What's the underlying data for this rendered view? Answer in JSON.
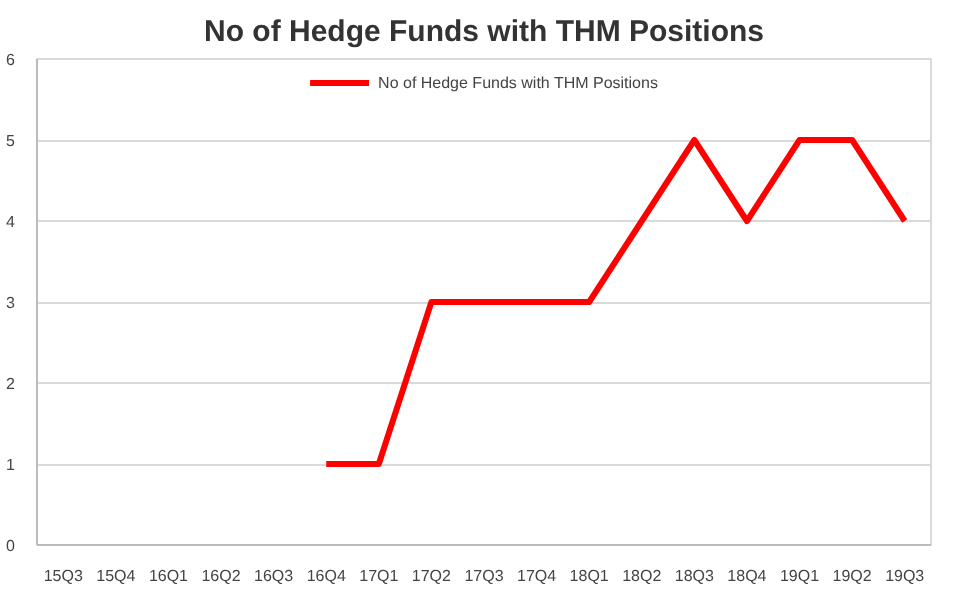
{
  "chart_data": {
    "type": "line",
    "title": "No of Hedge Funds with THM Positions",
    "categories": [
      "15Q3",
      "15Q4",
      "16Q1",
      "16Q2",
      "16Q3",
      "16Q4",
      "17Q1",
      "17Q2",
      "17Q3",
      "17Q4",
      "18Q1",
      "18Q2",
      "18Q3",
      "18Q4",
      "19Q1",
      "19Q2",
      "19Q3"
    ],
    "series": [
      {
        "name": "No of Hedge Funds with THM Positions",
        "color": "#ff0000",
        "values": [
          null,
          null,
          null,
          null,
          null,
          1,
          1,
          3,
          3,
          3,
          3,
          4,
          5,
          4,
          5,
          5,
          4
        ]
      }
    ],
    "ylim": [
      0,
      6
    ],
    "yticks": [
      0,
      1,
      2,
      3,
      4,
      5,
      6
    ],
    "grid": "y",
    "legend": "top",
    "marker": "none",
    "line_style": "solid"
  }
}
